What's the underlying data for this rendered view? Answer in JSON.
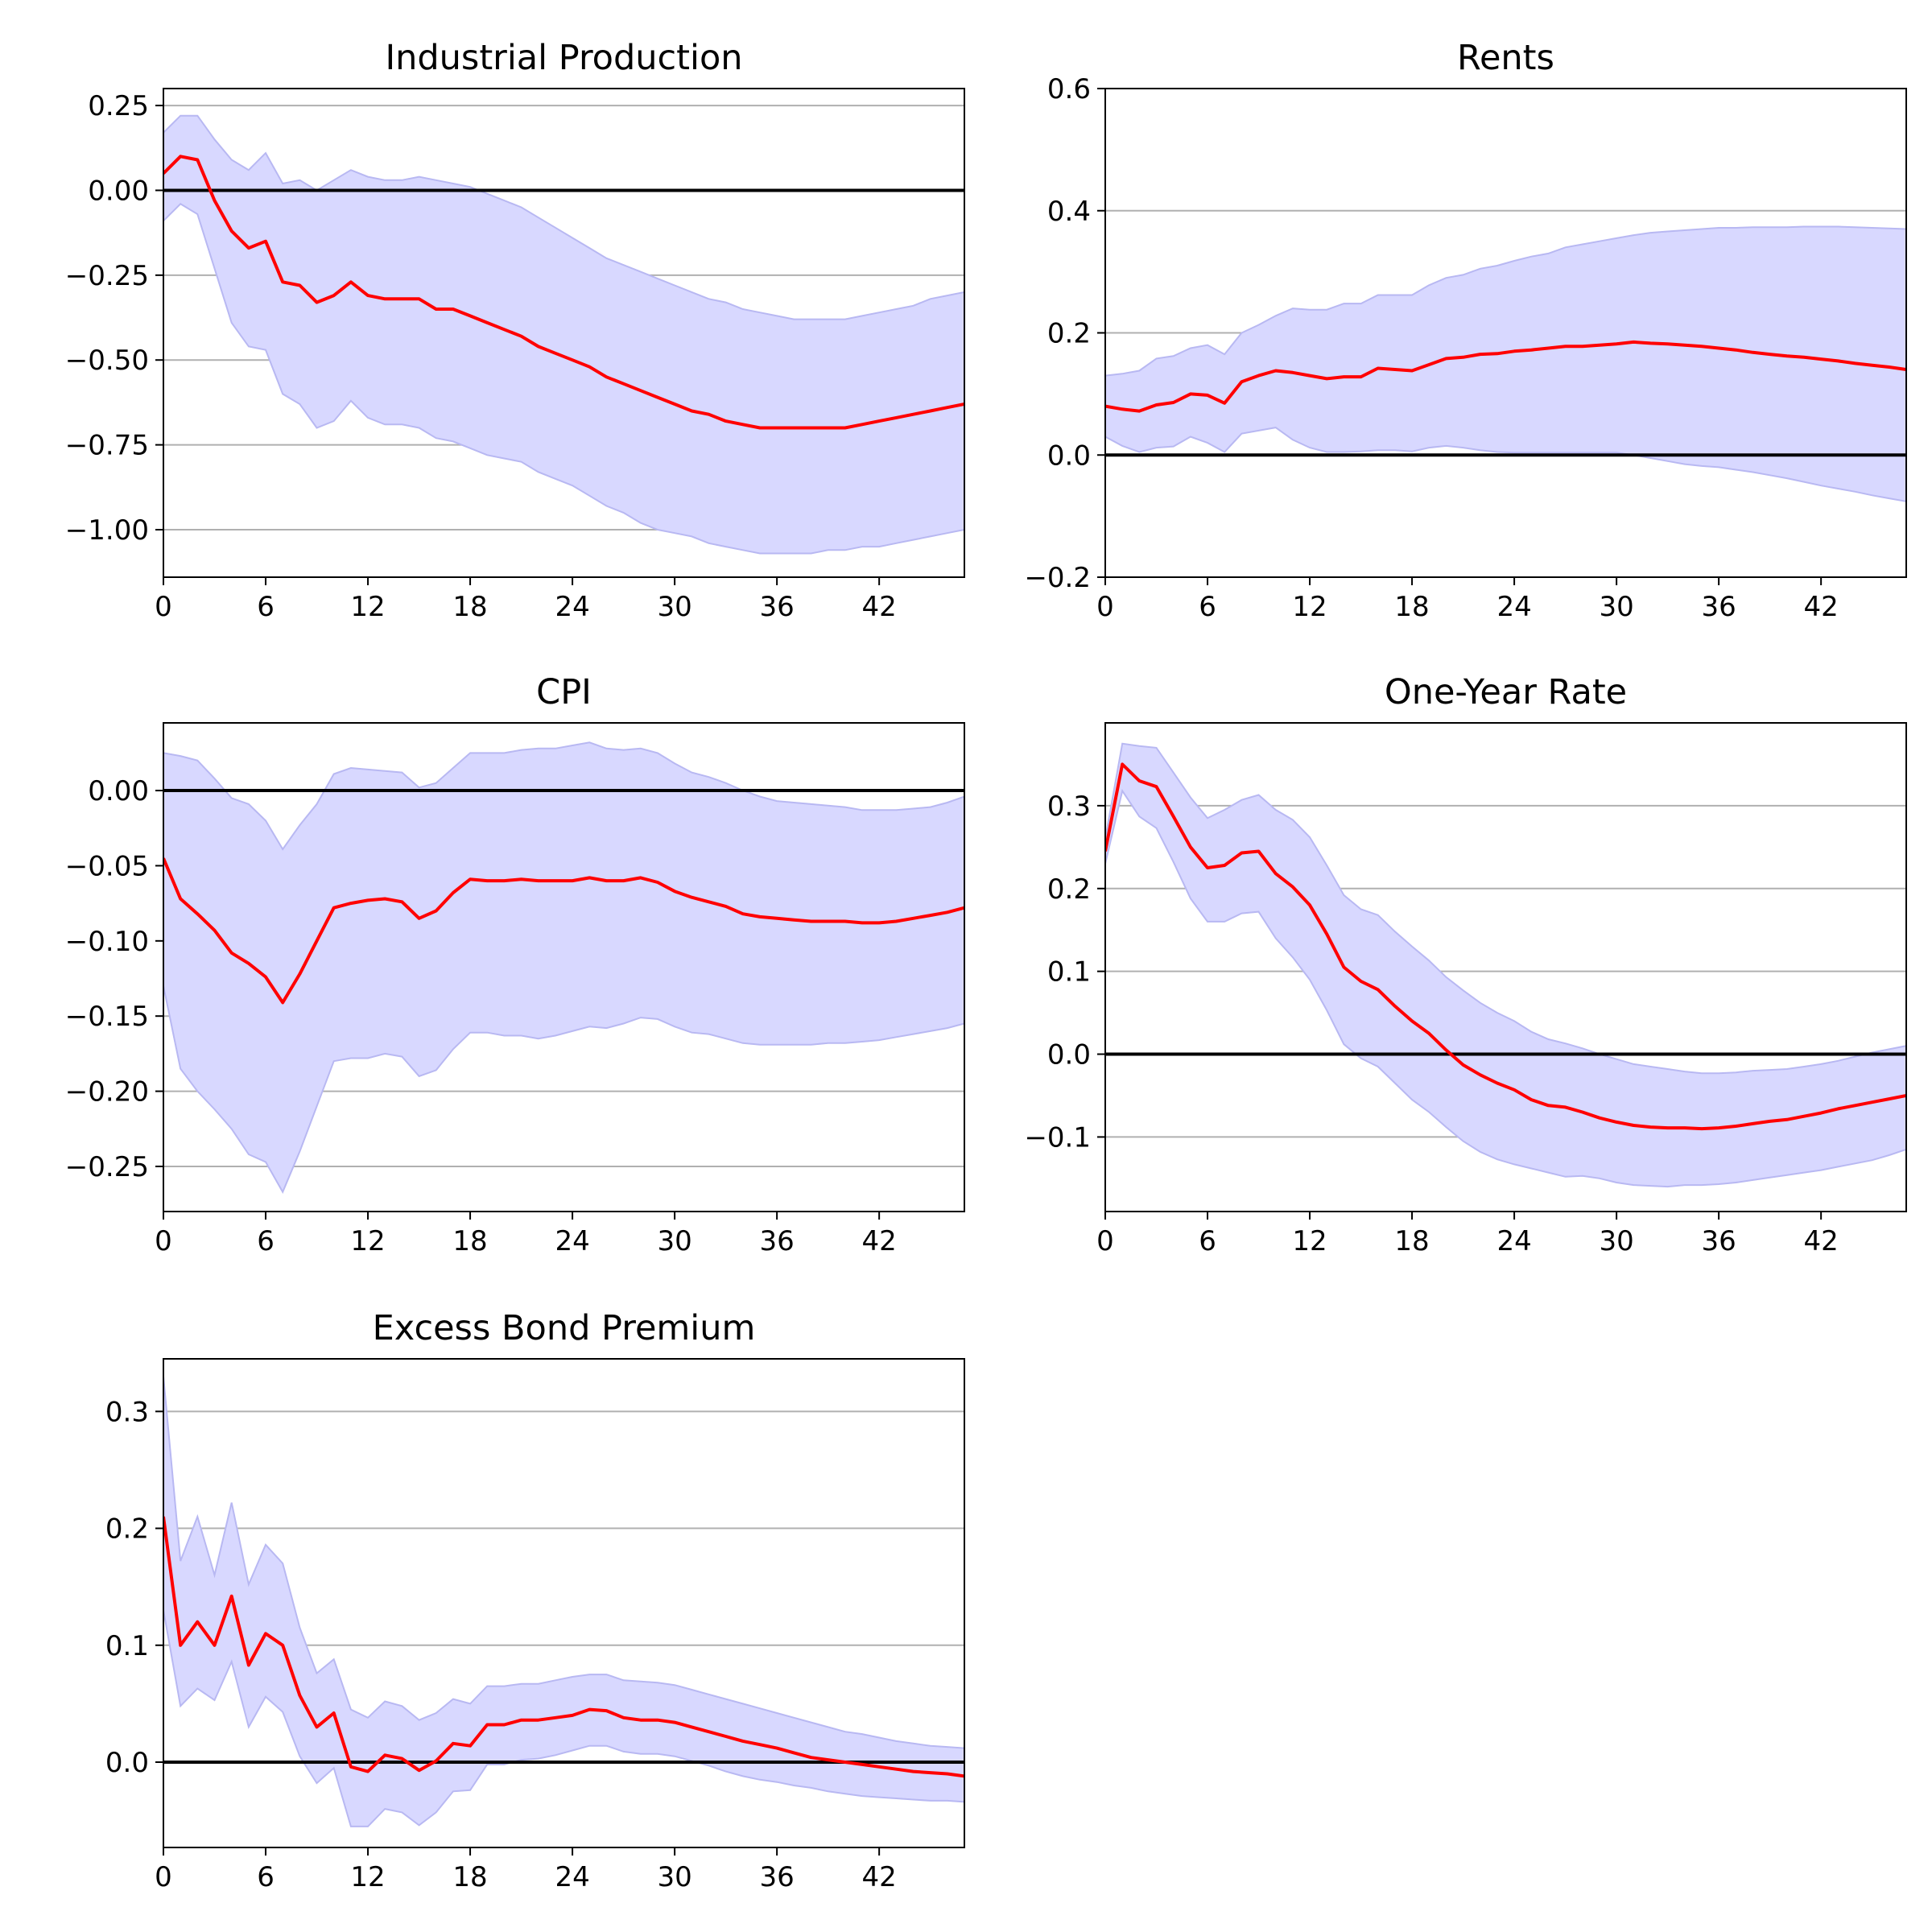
{
  "chart_data": [
    {
      "type": "line",
      "title": "Industrial Production",
      "xlim": [
        0,
        47
      ],
      "ylim": [
        -1.14,
        0.3
      ],
      "xticks": [
        0,
        6,
        12,
        18,
        24,
        30,
        36,
        42
      ],
      "yticks": [
        0.25,
        0.0,
        -0.25,
        -0.5,
        -0.75,
        -1.0
      ],
      "ytick_labels": [
        "0.25",
        "0.00",
        "−0.25",
        "−0.50",
        "−0.75",
        "−1.00"
      ],
      "grid": "y",
      "zero_line": true,
      "x": [
        0,
        1,
        2,
        3,
        4,
        5,
        6,
        7,
        8,
        9,
        10,
        11,
        12,
        13,
        14,
        15,
        16,
        17,
        18,
        19,
        20,
        21,
        22,
        23,
        24,
        25,
        26,
        27,
        28,
        29,
        30,
        31,
        32,
        33,
        34,
        35,
        36,
        37,
        38,
        39,
        40,
        41,
        42,
        43,
        44,
        45,
        46,
        47
      ],
      "median": [
        0.05,
        0.1,
        0.09,
        -0.03,
        -0.12,
        -0.17,
        -0.15,
        -0.27,
        -0.28,
        -0.33,
        -0.31,
        -0.27,
        -0.31,
        -0.32,
        -0.32,
        -0.32,
        -0.35,
        -0.35,
        -0.37,
        -0.39,
        -0.41,
        -0.43,
        -0.46,
        -0.48,
        -0.5,
        -0.52,
        -0.55,
        -0.57,
        -0.59,
        -0.61,
        -0.63,
        -0.65,
        -0.66,
        -0.68,
        -0.69,
        -0.7,
        -0.7,
        -0.7,
        -0.7,
        -0.7,
        -0.7,
        -0.69,
        -0.68,
        -0.67,
        -0.66,
        -0.65,
        -0.64,
        -0.63
      ],
      "upper": [
        0.17,
        0.22,
        0.22,
        0.15,
        0.09,
        0.06,
        0.11,
        0.02,
        0.03,
        0.0,
        0.03,
        0.06,
        0.04,
        0.03,
        0.03,
        0.04,
        0.03,
        0.02,
        0.01,
        -0.01,
        -0.03,
        -0.05,
        -0.08,
        -0.11,
        -0.14,
        -0.17,
        -0.2,
        -0.22,
        -0.24,
        -0.26,
        -0.28,
        -0.3,
        -0.32,
        -0.33,
        -0.35,
        -0.36,
        -0.37,
        -0.38,
        -0.38,
        -0.38,
        -0.38,
        -0.37,
        -0.36,
        -0.35,
        -0.34,
        -0.32,
        -0.31,
        -0.3
      ],
      "lower": [
        -0.09,
        -0.04,
        -0.07,
        -0.23,
        -0.39,
        -0.46,
        -0.47,
        -0.6,
        -0.63,
        -0.7,
        -0.68,
        -0.62,
        -0.67,
        -0.69,
        -0.69,
        -0.7,
        -0.73,
        -0.74,
        -0.76,
        -0.78,
        -0.79,
        -0.8,
        -0.83,
        -0.85,
        -0.87,
        -0.9,
        -0.93,
        -0.95,
        -0.98,
        -1.0,
        -1.01,
        -1.02,
        -1.04,
        -1.05,
        -1.06,
        -1.07,
        -1.07,
        -1.07,
        -1.07,
        -1.06,
        -1.06,
        -1.05,
        -1.05,
        -1.04,
        -1.03,
        -1.02,
        -1.01,
        -1.0
      ]
    },
    {
      "type": "line",
      "title": "Rents",
      "xlim": [
        0,
        47
      ],
      "ylim": [
        -0.2,
        0.6
      ],
      "xticks": [
        0,
        6,
        12,
        18,
        24,
        30,
        36,
        42
      ],
      "yticks": [
        0.6,
        0.4,
        0.2,
        0.0,
        -0.2
      ],
      "ytick_labels": [
        "0.6",
        "0.4",
        "0.2",
        "0.0",
        "−0.2"
      ],
      "grid": "y",
      "zero_line": true,
      "x": [
        0,
        1,
        2,
        3,
        4,
        5,
        6,
        7,
        8,
        9,
        10,
        11,
        12,
        13,
        14,
        15,
        16,
        17,
        18,
        19,
        20,
        21,
        22,
        23,
        24,
        25,
        26,
        27,
        28,
        29,
        30,
        31,
        32,
        33,
        34,
        35,
        36,
        37,
        38,
        39,
        40,
        41,
        42,
        43,
        44,
        45,
        46,
        47
      ],
      "median": [
        0.08,
        0.075,
        0.072,
        0.082,
        0.086,
        0.1,
        0.098,
        0.085,
        0.12,
        0.13,
        0.138,
        0.135,
        0.13,
        0.125,
        0.128,
        0.128,
        0.142,
        0.14,
        0.138,
        0.148,
        0.158,
        0.16,
        0.165,
        0.166,
        0.17,
        0.172,
        0.175,
        0.178,
        0.178,
        0.18,
        0.182,
        0.185,
        0.183,
        0.182,
        0.18,
        0.178,
        0.175,
        0.172,
        0.168,
        0.165,
        0.162,
        0.16,
        0.157,
        0.154,
        0.15,
        0.147,
        0.144,
        0.14
      ],
      "upper": [
        0.13,
        0.133,
        0.138,
        0.158,
        0.162,
        0.175,
        0.18,
        0.165,
        0.2,
        0.213,
        0.228,
        0.24,
        0.238,
        0.238,
        0.248,
        0.248,
        0.262,
        0.262,
        0.262,
        0.278,
        0.29,
        0.295,
        0.305,
        0.31,
        0.318,
        0.325,
        0.33,
        0.34,
        0.345,
        0.35,
        0.355,
        0.36,
        0.364,
        0.366,
        0.368,
        0.37,
        0.372,
        0.372,
        0.373,
        0.373,
        0.373,
        0.374,
        0.374,
        0.374,
        0.373,
        0.372,
        0.371,
        0.37
      ],
      "lower": [
        0.03,
        0.015,
        0.005,
        0.012,
        0.014,
        0.03,
        0.02,
        0.005,
        0.035,
        0.04,
        0.045,
        0.025,
        0.012,
        0.005,
        0.005,
        0.006,
        0.008,
        0.008,
        0.006,
        0.012,
        0.015,
        0.012,
        0.008,
        0.005,
        0.004,
        0.004,
        0.004,
        0.004,
        0.004,
        0.004,
        0.004,
        0.0,
        -0.005,
        -0.01,
        -0.015,
        -0.018,
        -0.02,
        -0.024,
        -0.028,
        -0.033,
        -0.038,
        -0.044,
        -0.05,
        -0.055,
        -0.06,
        -0.066,
        -0.071,
        -0.076
      ]
    },
    {
      "type": "line",
      "title": "CPI",
      "xlim": [
        0,
        47
      ],
      "ylim": [
        -0.28,
        0.045
      ],
      "xticks": [
        0,
        6,
        12,
        18,
        24,
        30,
        36,
        42
      ],
      "yticks": [
        0.0,
        -0.05,
        -0.1,
        -0.15,
        -0.2,
        -0.25
      ],
      "ytick_labels": [
        "0.00",
        "−0.05",
        "−0.10",
        "−0.15",
        "−0.20",
        "−0.25"
      ],
      "grid": "y",
      "zero_line": true,
      "x": [
        0,
        1,
        2,
        3,
        4,
        5,
        6,
        7,
        8,
        9,
        10,
        11,
        12,
        13,
        14,
        15,
        16,
        17,
        18,
        19,
        20,
        21,
        22,
        23,
        24,
        25,
        26,
        27,
        28,
        29,
        30,
        31,
        32,
        33,
        34,
        35,
        36,
        37,
        38,
        39,
        40,
        41,
        42,
        43,
        44,
        45,
        46,
        47
      ],
      "median": [
        -0.045,
        -0.072,
        -0.082,
        -0.093,
        -0.108,
        -0.115,
        -0.124,
        -0.141,
        -0.122,
        -0.1,
        -0.078,
        -0.075,
        -0.073,
        -0.072,
        -0.074,
        -0.085,
        -0.08,
        -0.068,
        -0.059,
        -0.06,
        -0.06,
        -0.059,
        -0.06,
        -0.06,
        -0.06,
        -0.058,
        -0.06,
        -0.06,
        -0.058,
        -0.061,
        -0.067,
        -0.071,
        -0.074,
        -0.077,
        -0.082,
        -0.084,
        -0.085,
        -0.086,
        -0.087,
        -0.087,
        -0.087,
        -0.088,
        -0.088,
        -0.087,
        -0.085,
        -0.083,
        -0.081,
        -0.078
      ],
      "upper": [
        0.025,
        0.023,
        0.02,
        0.008,
        -0.005,
        -0.009,
        -0.02,
        -0.039,
        -0.023,
        -0.009,
        0.011,
        0.015,
        0.014,
        0.013,
        0.012,
        0.002,
        0.005,
        0.015,
        0.025,
        0.025,
        0.025,
        0.027,
        0.028,
        0.028,
        0.03,
        0.032,
        0.028,
        0.027,
        0.028,
        0.025,
        0.018,
        0.012,
        0.009,
        0.005,
        0.0,
        -0.004,
        -0.007,
        -0.008,
        -0.009,
        -0.01,
        -0.011,
        -0.013,
        -0.013,
        -0.013,
        -0.012,
        -0.011,
        -0.008,
        -0.004
      ],
      "lower": [
        -0.13,
        -0.185,
        -0.2,
        -0.212,
        -0.225,
        -0.242,
        -0.247,
        -0.267,
        -0.24,
        -0.21,
        -0.18,
        -0.178,
        -0.178,
        -0.175,
        -0.177,
        -0.19,
        -0.186,
        -0.172,
        -0.161,
        -0.161,
        -0.163,
        -0.163,
        -0.165,
        -0.163,
        -0.16,
        -0.157,
        -0.158,
        -0.155,
        -0.151,
        -0.152,
        -0.157,
        -0.161,
        -0.162,
        -0.165,
        -0.168,
        -0.169,
        -0.169,
        -0.169,
        -0.169,
        -0.168,
        -0.168,
        -0.167,
        -0.166,
        -0.164,
        -0.162,
        -0.16,
        -0.158,
        -0.155
      ]
    },
    {
      "type": "line",
      "title": "One-Year Rate",
      "xlim": [
        0,
        47
      ],
      "ylim": [
        -0.19,
        0.4
      ],
      "xticks": [
        0,
        6,
        12,
        18,
        24,
        30,
        36,
        42
      ],
      "yticks": [
        0.3,
        0.2,
        0.1,
        0.0,
        -0.1
      ],
      "ytick_labels": [
        "0.3",
        "0.2",
        "0.1",
        "0.0",
        "−0.1"
      ],
      "grid": "y",
      "zero_line": true,
      "x": [
        0,
        1,
        2,
        3,
        4,
        5,
        6,
        7,
        8,
        9,
        10,
        11,
        12,
        13,
        14,
        15,
        16,
        17,
        18,
        19,
        20,
        21,
        22,
        23,
        24,
        25,
        26,
        27,
        28,
        29,
        30,
        31,
        32,
        33,
        34,
        35,
        36,
        37,
        38,
        39,
        40,
        41,
        42,
        43,
        44,
        45,
        46,
        47
      ],
      "median": [
        0.245,
        0.35,
        0.33,
        0.323,
        0.287,
        0.25,
        0.225,
        0.228,
        0.243,
        0.245,
        0.218,
        0.202,
        0.18,
        0.145,
        0.105,
        0.088,
        0.078,
        0.058,
        0.04,
        0.025,
        0.005,
        -0.013,
        -0.025,
        -0.035,
        -0.043,
        -0.055,
        -0.062,
        -0.064,
        -0.07,
        -0.077,
        -0.082,
        -0.086,
        -0.088,
        -0.089,
        -0.089,
        -0.09,
        -0.089,
        -0.087,
        -0.084,
        -0.081,
        -0.079,
        -0.075,
        -0.071,
        -0.066,
        -0.062,
        -0.058,
        -0.054,
        -0.05
      ],
      "upper": [
        0.26,
        0.375,
        0.372,
        0.37,
        0.34,
        0.31,
        0.285,
        0.295,
        0.307,
        0.313,
        0.295,
        0.283,
        0.262,
        0.228,
        0.192,
        0.175,
        0.168,
        0.148,
        0.13,
        0.113,
        0.093,
        0.077,
        0.062,
        0.05,
        0.04,
        0.027,
        0.018,
        0.013,
        0.007,
        0.0,
        -0.006,
        -0.012,
        -0.015,
        -0.018,
        -0.021,
        -0.023,
        -0.023,
        -0.022,
        -0.02,
        -0.019,
        -0.018,
        -0.015,
        -0.012,
        -0.008,
        -0.003,
        0.002,
        0.006,
        0.01
      ],
      "lower": [
        0.23,
        0.318,
        0.287,
        0.273,
        0.232,
        0.188,
        0.16,
        0.16,
        0.17,
        0.172,
        0.14,
        0.117,
        0.09,
        0.053,
        0.012,
        -0.005,
        -0.015,
        -0.035,
        -0.055,
        -0.07,
        -0.088,
        -0.105,
        -0.118,
        -0.127,
        -0.133,
        -0.138,
        -0.143,
        -0.148,
        -0.147,
        -0.15,
        -0.155,
        -0.158,
        -0.159,
        -0.16,
        -0.158,
        -0.158,
        -0.157,
        -0.155,
        -0.152,
        -0.149,
        -0.146,
        -0.143,
        -0.14,
        -0.136,
        -0.132,
        -0.128,
        -0.122,
        -0.115
      ]
    },
    {
      "type": "line",
      "title": "Excess Bond Premium",
      "xlim": [
        0,
        47
      ],
      "ylim": [
        -0.073,
        0.345
      ],
      "xticks": [
        0,
        6,
        12,
        18,
        24,
        30,
        36,
        42
      ],
      "yticks": [
        0.3,
        0.2,
        0.1,
        0.0
      ],
      "ytick_labels": [
        "0.3",
        "0.2",
        "0.1",
        "0.0"
      ],
      "grid": "y",
      "zero_line": true,
      "x": [
        0,
        1,
        2,
        3,
        4,
        5,
        6,
        7,
        8,
        9,
        10,
        11,
        12,
        13,
        14,
        15,
        16,
        17,
        18,
        19,
        20,
        21,
        22,
        23,
        24,
        25,
        26,
        27,
        28,
        29,
        30,
        31,
        32,
        33,
        34,
        35,
        36,
        37,
        38,
        39,
        40,
        41,
        42,
        43,
        44,
        45,
        46,
        47
      ],
      "median": [
        0.21,
        0.1,
        0.12,
        0.1,
        0.142,
        0.083,
        0.11,
        0.1,
        0.057,
        0.03,
        0.042,
        -0.004,
        -0.008,
        0.006,
        0.003,
        -0.007,
        0.001,
        0.016,
        0.014,
        0.032,
        0.032,
        0.036,
        0.036,
        0.038,
        0.04,
        0.045,
        0.044,
        0.038,
        0.036,
        0.036,
        0.034,
        0.03,
        0.026,
        0.022,
        0.018,
        0.015,
        0.012,
        0.008,
        0.004,
        0.002,
        0.0,
        -0.002,
        -0.004,
        -0.006,
        -0.008,
        -0.009,
        -0.01,
        -0.012
      ],
      "upper": [
        0.33,
        0.172,
        0.21,
        0.16,
        0.222,
        0.152,
        0.186,
        0.17,
        0.115,
        0.076,
        0.088,
        0.045,
        0.038,
        0.052,
        0.048,
        0.036,
        0.042,
        0.054,
        0.05,
        0.065,
        0.065,
        0.067,
        0.067,
        0.07,
        0.073,
        0.075,
        0.075,
        0.07,
        0.069,
        0.068,
        0.066,
        0.062,
        0.058,
        0.054,
        0.05,
        0.046,
        0.042,
        0.038,
        0.034,
        0.03,
        0.026,
        0.024,
        0.021,
        0.018,
        0.016,
        0.014,
        0.013,
        0.012
      ],
      "lower": [
        0.13,
        0.048,
        0.063,
        0.053,
        0.086,
        0.03,
        0.056,
        0.043,
        0.005,
        -0.018,
        -0.005,
        -0.055,
        -0.055,
        -0.04,
        -0.043,
        -0.054,
        -0.043,
        -0.025,
        -0.024,
        -0.002,
        -0.002,
        0.002,
        0.003,
        0.006,
        0.01,
        0.014,
        0.014,
        0.009,
        0.007,
        0.007,
        0.005,
        0.001,
        -0.003,
        -0.008,
        -0.012,
        -0.015,
        -0.017,
        -0.02,
        -0.022,
        -0.025,
        -0.027,
        -0.029,
        -0.03,
        -0.031,
        -0.032,
        -0.033,
        -0.033,
        -0.034
      ]
    }
  ],
  "colors": {
    "median_line": "#ff0000",
    "band_fill": "#d8d8ff",
    "band_edge": "#b8b8f2",
    "zero_line": "#000000",
    "grid": "#b0b0b0"
  }
}
